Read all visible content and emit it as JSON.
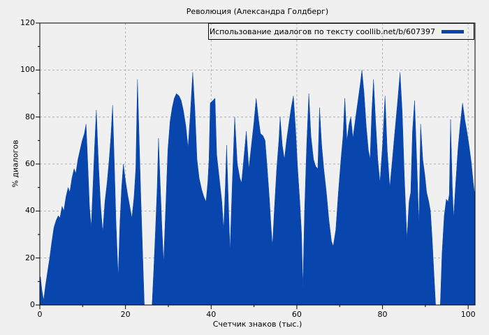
{
  "title": "Революция (Александра Голдберг)",
  "legend": {
    "label": "Использование диалогов по тексту coollib.net/b/607397",
    "swatch_color": "#0846ad"
  },
  "axes": {
    "xlabel": "Счетчик знаков (тыс.)",
    "ylabel": "% диалогов",
    "xticks": [
      0,
      20,
      40,
      60,
      80,
      100
    ],
    "yticks": [
      0,
      20,
      40,
      60,
      80,
      100,
      120
    ],
    "xlim": [
      0,
      101.6
    ],
    "ylim": [
      0,
      120
    ],
    "grid": "dashed-major"
  },
  "colors": {
    "fill": "#0846ad",
    "background": "#f0f0f0",
    "frame": "#000000",
    "grid": "#b0b0b0"
  },
  "chart_data": {
    "type": "area",
    "title": "Революция (Александра Голдберг)",
    "series": [
      {
        "name": "Использование диалогов по тексту coollib.net/b/607397",
        "x": [
          0,
          0.15,
          0.5,
          0.9,
          1.3,
          1.8,
          2.3,
          2.8,
          3.3,
          3.8,
          4.3,
          4.7,
          5.2,
          5.6,
          6.1,
          6.6,
          7.0,
          7.5,
          8.0,
          8.4,
          8.9,
          9.4,
          9.9,
          10.4,
          10.8,
          11.2,
          11.6,
          12.0,
          12.4,
          12.8,
          13.2,
          13.7,
          14.2,
          14.7,
          15.2,
          15.7,
          16.2,
          16.6,
          17.0,
          17.4,
          17.8,
          18.3,
          18.7,
          19.1,
          19.5,
          20.0,
          20.5,
          21.0,
          21.5,
          22.0,
          22.4,
          22.8,
          23.2,
          23.6,
          24.0,
          24.4,
          26.2,
          26.6,
          27.0,
          27.4,
          27.7,
          28.1,
          28.5,
          28.9,
          29.4,
          29.9,
          30.4,
          30.9,
          31.4,
          31.9,
          32.5,
          33.0,
          33.5,
          34.1,
          34.6,
          35.1,
          35.7,
          36.2,
          36.7,
          37.2,
          37.8,
          38.3,
          38.8,
          39.2,
          39.5,
          39.8,
          40.4,
          40.9,
          41.3,
          41.9,
          42.5,
          42.9,
          43.3,
          43.6,
          44.0,
          44.4,
          44.9,
          45.5,
          46.1,
          46.7,
          47.1,
          47.6,
          48.2,
          48.8,
          49.4,
          50.0,
          50.5,
          51.0,
          51.5,
          52.1,
          52.6,
          53.1,
          53.6,
          54.0,
          54.3,
          54.8,
          55.3,
          55.8,
          56.1,
          56.6,
          57.1,
          57.6,
          58.2,
          58.7,
          59.2,
          59.7,
          60.2,
          60.7,
          61.1,
          61.4,
          61.8,
          62.3,
          62.8,
          63.3,
          63.9,
          64.4,
          64.9,
          65.3,
          65.8,
          66.3,
          66.9,
          67.5,
          68.1,
          68.5,
          69.1,
          69.7,
          70.3,
          70.8,
          71.2,
          71.7,
          72.2,
          72.6,
          73.1,
          73.6,
          74.2,
          74.8,
          75.2,
          75.7,
          76.2,
          76.7,
          77.1,
          77.5,
          77.9,
          78.4,
          78.9,
          79.4,
          80.0,
          80.6,
          81.1,
          81.7,
          82.3,
          82.9,
          83.5,
          84.1,
          84.6,
          85.1,
          85.7,
          86.2,
          86.6,
          87.0,
          87.5,
          88.1,
          88.5,
          88.9,
          89.4,
          89.9,
          90.3,
          90.8,
          91.2,
          91.6,
          92.0,
          92.4,
          93.5,
          93.9,
          94.4,
          94.9,
          95.3,
          95.6,
          95.9,
          96.3,
          96.6,
          97.1,
          97.6,
          98.1,
          98.7,
          99.2,
          99.7,
          100.2,
          100.7,
          101.2,
          101.6
        ],
        "y": [
          2,
          12,
          6,
          2,
          8,
          14,
          20,
          27,
          33,
          36,
          38,
          37,
          42,
          40,
          46,
          50,
          48,
          54,
          58,
          56,
          62,
          66,
          70,
          73,
          77,
          60,
          42,
          33,
          50,
          68,
          83,
          60,
          42,
          31,
          44,
          52,
          62,
          72,
          85,
          60,
          35,
          12,
          35,
          50,
          60,
          53,
          47,
          42,
          37,
          46,
          58,
          96,
          70,
          45,
          22,
          0,
          0,
          15,
          32,
          50,
          71,
          52,
          33,
          18,
          42,
          66,
          78,
          84,
          88,
          90,
          89,
          87,
          83,
          76,
          67,
          80,
          99,
          83,
          62,
          54,
          49,
          46,
          44,
          52,
          62,
          86,
          87,
          88,
          64,
          54,
          44,
          32,
          50,
          68,
          45,
          23,
          50,
          80,
          60,
          54,
          52,
          62,
          74,
          58,
          68,
          78,
          88,
          80,
          73,
          72,
          70,
          58,
          45,
          33,
          25,
          42,
          58,
          70,
          80,
          68,
          62,
          70,
          78,
          84,
          89,
          75,
          58,
          44,
          30,
          7,
          40,
          68,
          90,
          72,
          62,
          59,
          58,
          84,
          68,
          58,
          48,
          36,
          27,
          25,
          32,
          48,
          62,
          72,
          88,
          70,
          77,
          80,
          71,
          78,
          86,
          94,
          100,
          90,
          76,
          66,
          62,
          82,
          96,
          78,
          62,
          52,
          68,
          89,
          66,
          50,
          62,
          74,
          86,
          99,
          82,
          55,
          28,
          44,
          48,
          74,
          87,
          56,
          34,
          77,
          62,
          55,
          48,
          44,
          40,
          28,
          14,
          0,
          0,
          22,
          38,
          45,
          44,
          47,
          79,
          50,
          37,
          52,
          66,
          76,
          86,
          79,
          74,
          68,
          61,
          52,
          46
        ]
      }
    ],
    "xlabel": "Счетчик знаков (тыс.)",
    "ylabel": "% диалогов",
    "legend_position": "top-right-inside-box"
  }
}
